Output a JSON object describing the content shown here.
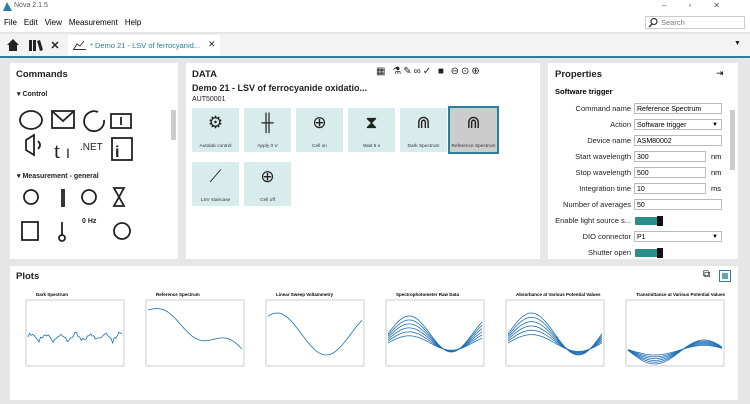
{
  "window": {
    "title": "Nova 2.1.5"
  },
  "menu": [
    "File",
    "Edit",
    "View",
    "Measurement",
    "Help"
  ],
  "search": {
    "placeholder": "Search"
  },
  "tab": {
    "title": "* Demo 21 - LSV of ferrocyanid..."
  },
  "commands": {
    "title": "Commands",
    "groups": [
      "Control",
      "Measurement - general"
    ],
    "icon_texts": [
      ".NET",
      "0 Hz"
    ]
  },
  "data_panel": {
    "title": "DATA",
    "procedure": "Demo 21 - LSV of ferrocyanide oxidatio...",
    "instrument": "AUT50001",
    "blocks": [
      "Autolab control",
      "Apply 0 V",
      "Cell on",
      "Wait 5 s",
      "Dark Spectrum",
      "Reference Spectrum",
      "LSV staircase",
      "Cell off"
    ]
  },
  "properties": {
    "title": "Properties",
    "section": "Software trigger",
    "rows": [
      {
        "label": "Command name",
        "value": "Reference Spectrum"
      },
      {
        "label": "Action",
        "value": "Software trigger"
      },
      {
        "label": "Device name",
        "value": "ASM80002"
      },
      {
        "label": "Start wavelength",
        "value": "300",
        "unit": "nm"
      },
      {
        "label": "Stop wavelength",
        "value": "500",
        "unit": "nm"
      },
      {
        "label": "Integration time",
        "value": "10",
        "unit": "ms"
      },
      {
        "label": "Number of averages",
        "value": "50"
      },
      {
        "label": "Enable light source s..."
      },
      {
        "label": "DIO connector",
        "value": "P1"
      },
      {
        "label": "Shutter open"
      }
    ]
  },
  "plots": {
    "title": "Plots",
    "thumbnails": [
      "Dark Spectrum",
      "Reference Spectrum",
      "Linear Sweep Voltammetry",
      "Spectrophotometer Raw Data",
      "Absorbance at Various Potential Values",
      "Transmittance at Various Potential Values"
    ]
  }
}
